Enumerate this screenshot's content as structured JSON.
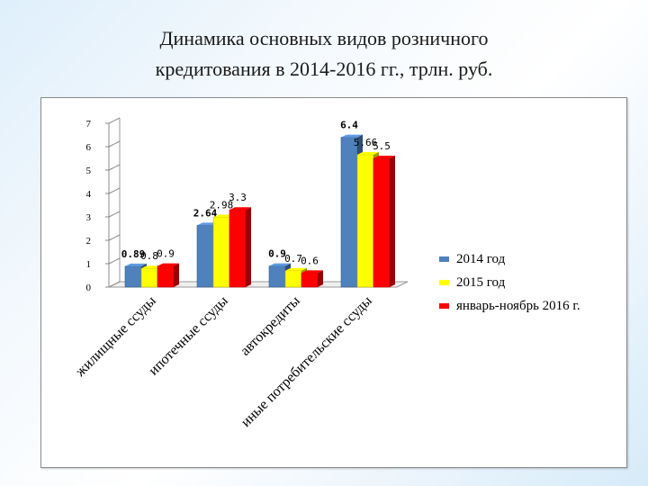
{
  "slide": {
    "title_line1": "Динамика основных видов розничного",
    "title_line2": "кредитования в 2014-2016 гг., трлн. руб."
  },
  "chart_data": {
    "type": "bar",
    "categories": [
      "жилищные ссуды",
      "ипотечные ссуды",
      "автокредиты",
      "иные потребительские ссуды"
    ],
    "series": [
      {
        "name": "2014 год",
        "color": "#4f81bd",
        "values": [
          0.89,
          2.64,
          0.9,
          6.4
        ],
        "labels": [
          "0.89",
          "2.64",
          "0.9",
          "6.4"
        ]
      },
      {
        "name": "2015 год",
        "color": "#ffff00",
        "values": [
          0.8,
          2.98,
          0.7,
          5.66
        ],
        "labels": [
          "0.8",
          "2.98",
          "0.7",
          "5.66"
        ]
      },
      {
        "name": "январь-ноябрь 2016 г.",
        "color": "#ff0000",
        "values": [
          0.9,
          3.3,
          0.6,
          5.5
        ],
        "labels": [
          "0.9",
          "3.3",
          "0.6",
          "5.5"
        ]
      }
    ],
    "ylim": [
      0,
      7
    ],
    "yticks": [
      "0",
      "1",
      "2",
      "3",
      "4",
      "5",
      "6",
      "7"
    ],
    "grid": false,
    "legend_position": "right"
  }
}
